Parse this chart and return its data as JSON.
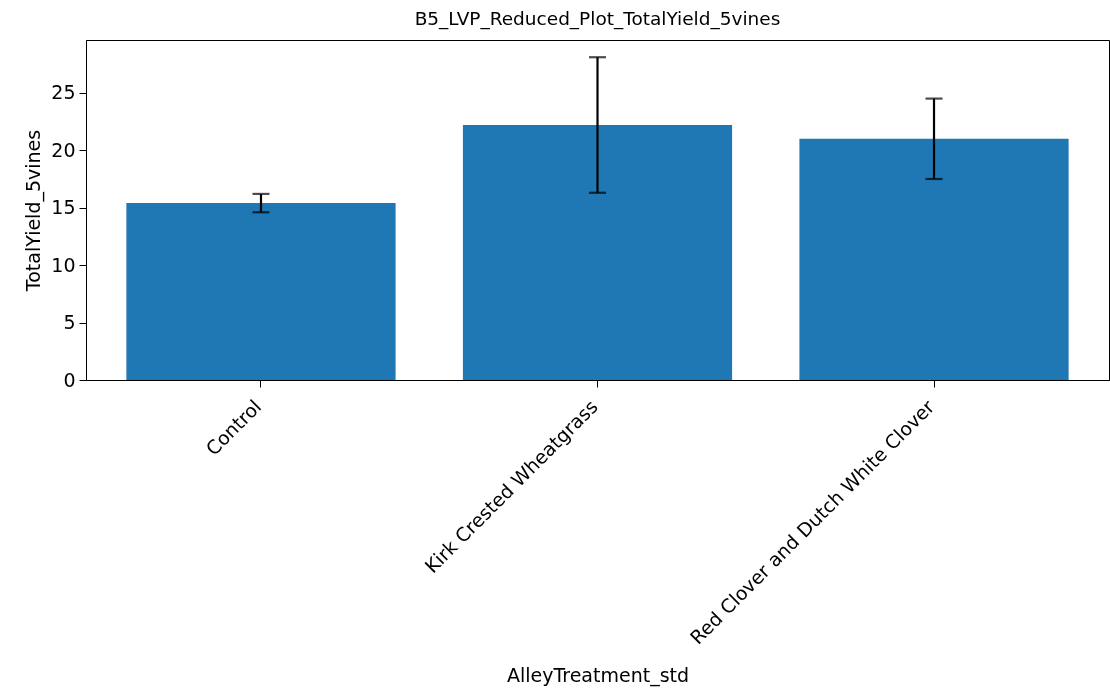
{
  "chart_data": {
    "type": "bar",
    "title": "B5_LVP_Reduced_Plot_TotalYield_5vines",
    "xlabel": "AlleyTreatment_std",
    "ylabel": "TotalYield_5vines",
    "categories": [
      "Control",
      "Kirk Crested Wheatgrass",
      "Red Clover and Dutch White Clover"
    ],
    "values": [
      15.4,
      22.2,
      21.0
    ],
    "errors": [
      0.8,
      5.9,
      3.5
    ],
    "color": "#1f77b4",
    "ylim": [
      0,
      29.6
    ],
    "yticks": [
      0,
      5,
      10,
      15,
      20,
      25
    ],
    "grid": false
  }
}
